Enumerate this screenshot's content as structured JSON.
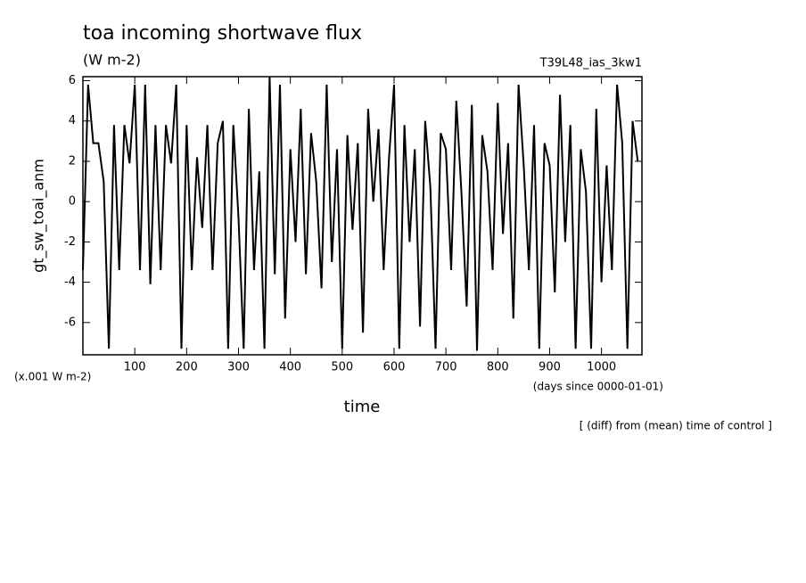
{
  "chart_data": {
    "type": "line",
    "title": "toa incoming shortwave flux",
    "subtitle": "(W m-2)",
    "annotation": "T39L48_ias_3kw1",
    "y_label": "gt_sw_toai_anm",
    "y_unit_note": "(x.001 W m-2)",
    "x_label": "time",
    "x_unit_note": "(days since 0000-01-01)",
    "footnote": "[ (diff) from (mean) time of control ]",
    "xlim": [
      0,
      1078
    ],
    "ylim": [
      -7.6,
      6.2
    ],
    "xticks": [
      100,
      200,
      300,
      400,
      500,
      600,
      700,
      800,
      900,
      1000
    ],
    "yticks": [
      -6,
      -4,
      -2,
      0,
      2,
      4,
      6
    ],
    "color": "#000000",
    "x": [
      0,
      10,
      20,
      30,
      40,
      50,
      60,
      70,
      80,
      90,
      100,
      110,
      120,
      130,
      140,
      150,
      160,
      170,
      180,
      190,
      200,
      210,
      220,
      230,
      240,
      250,
      260,
      270,
      280,
      290,
      300,
      310,
      320,
      330,
      340,
      350,
      360,
      370,
      380,
      390,
      400,
      410,
      420,
      430,
      440,
      450,
      460,
      470,
      480,
      490,
      500,
      510,
      520,
      530,
      540,
      550,
      560,
      570,
      580,
      590,
      600,
      610,
      620,
      630,
      640,
      650,
      660,
      670,
      680,
      690,
      700,
      710,
      720,
      730,
      740,
      750,
      760,
      770,
      780,
      790,
      800,
      810,
      820,
      830,
      840,
      850,
      860,
      870,
      880,
      890,
      900,
      910,
      920,
      930,
      940,
      950,
      960,
      970,
      980,
      990,
      1000,
      1010,
      1020,
      1030,
      1040,
      1050,
      1060,
      1070
    ],
    "values": [
      -3.4,
      5.8,
      2.9,
      2.9,
      1.0,
      -7.3,
      3.8,
      -3.4,
      3.8,
      1.9,
      5.8,
      -3.4,
      5.8,
      -4.1,
      3.8,
      -3.4,
      3.8,
      1.9,
      5.8,
      -7.3,
      3.8,
      -3.4,
      2.2,
      -1.3,
      3.8,
      -3.4,
      2.9,
      4.0,
      -7.3,
      3.8,
      -0.8,
      -7.3,
      4.6,
      -3.4,
      1.5,
      -7.3,
      6.2,
      -3.6,
      5.8,
      -5.8,
      2.6,
      -2.0,
      4.6,
      -3.6,
      3.4,
      1.0,
      -4.3,
      5.8,
      -3.0,
      2.6,
      -7.3,
      3.3,
      -1.4,
      2.9,
      -6.5,
      4.6,
      0.0,
      3.6,
      -3.4,
      2.1,
      5.8,
      -7.3,
      3.8,
      -2.0,
      2.6,
      -6.2,
      4.0,
      0.7,
      -7.3,
      3.4,
      2.6,
      -3.4,
      5.0,
      0.4,
      -5.2,
      4.8,
      -7.4,
      3.3,
      1.5,
      -3.4,
      4.9,
      -1.6,
      2.9,
      -5.8,
      5.8,
      1.8,
      -3.4,
      3.8,
      -7.3,
      2.9,
      1.8,
      -4.5,
      5.3,
      -2.0,
      3.8,
      -7.3,
      2.6,
      0.5,
      -7.3,
      4.6,
      -4.0,
      1.8,
      -3.4,
      5.8,
      2.9,
      -7.3,
      4.0,
      2.0
    ]
  }
}
